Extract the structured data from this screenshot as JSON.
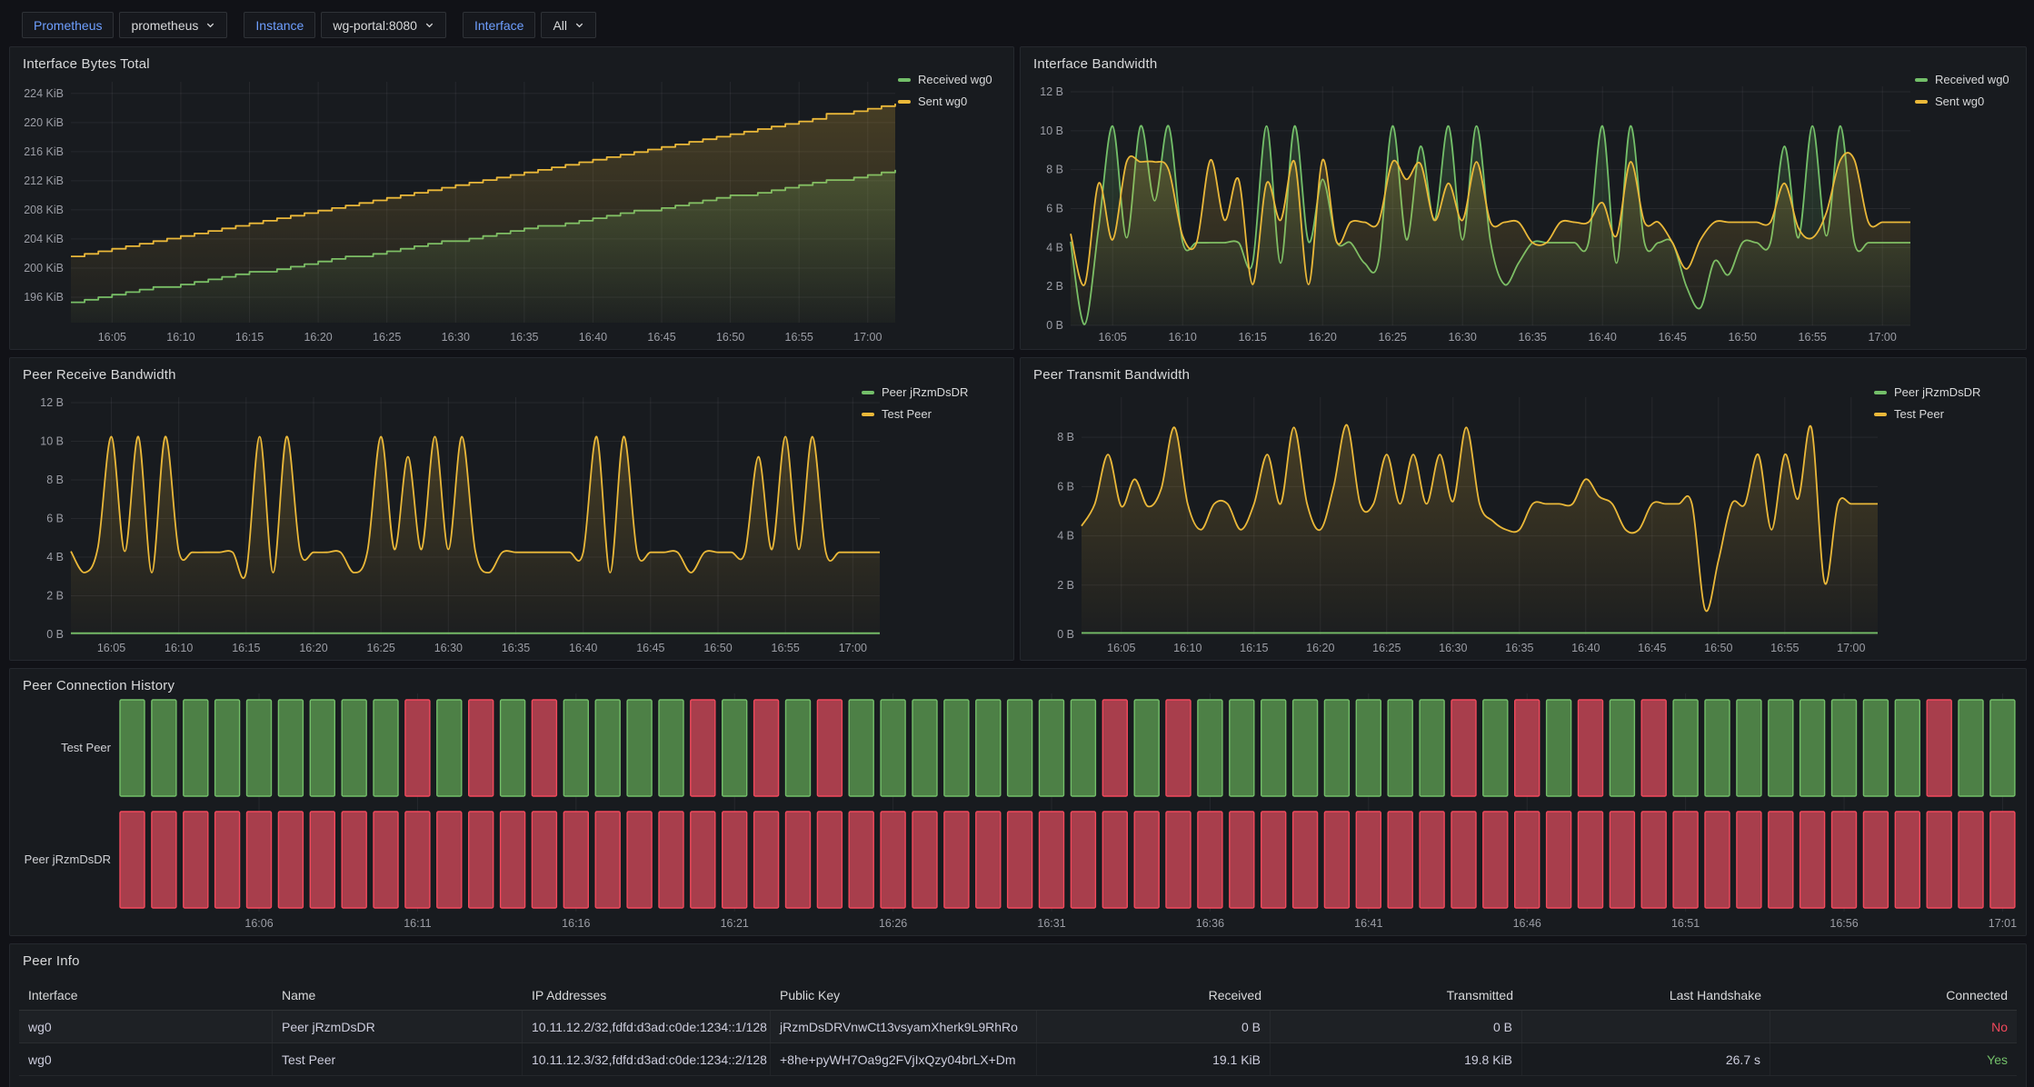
{
  "toolbar": {
    "variables": [
      {
        "label": "Prometheus",
        "value": "prometheus",
        "has_chevron": true
      },
      {
        "label": "Instance",
        "value": "wg-portal:8080",
        "has_chevron": true
      },
      {
        "label": "Interface",
        "value": "All",
        "has_chevron": true
      }
    ]
  },
  "colors": {
    "green": "#73BF69",
    "yellow": "#EAB839",
    "red": "#F2495C",
    "bar_green_fill": "#4d8046",
    "bar_red_fill": "#a83e4c",
    "link_blue": "#6e9fff",
    "text": "#d8d9da",
    "dim_text": "#9b9da5",
    "grid": "rgba(204,204,220,0.08)",
    "panel_bg": "#181b1f",
    "page_bg": "#111217"
  },
  "panels": {
    "bytes_total": {
      "title": "Interface Bytes Total",
      "legend": [
        {
          "label": "Received wg0",
          "color": "#73BF69"
        },
        {
          "label": "Sent wg0",
          "color": "#EAB839"
        }
      ]
    },
    "if_bandwidth": {
      "title": "Interface Bandwidth",
      "legend": [
        {
          "label": "Received wg0",
          "color": "#73BF69"
        },
        {
          "label": "Sent wg0",
          "color": "#EAB839"
        }
      ]
    },
    "peer_rx": {
      "title": "Peer Receive Bandwidth",
      "legend": [
        {
          "label": "Peer jRzmDsDR",
          "color": "#73BF69"
        },
        {
          "label": "Test Peer",
          "color": "#EAB839"
        }
      ]
    },
    "peer_tx": {
      "title": "Peer Transmit Bandwidth",
      "legend": [
        {
          "label": "Peer jRzmDsDR",
          "color": "#73BF69"
        },
        {
          "label": "Test Peer",
          "color": "#EAB839"
        }
      ]
    },
    "conn_history": {
      "title": "Peer Connection History"
    },
    "peer_info": {
      "title": "Peer Info"
    }
  },
  "time_axis": {
    "start": "16:02",
    "line_tick_labels": [
      "16:05",
      "16:10",
      "16:15",
      "16:20",
      "16:25",
      "16:30",
      "16:35",
      "16:40",
      "16:45",
      "16:50",
      "16:55",
      "17:00"
    ],
    "line_tick_offsets_min": [
      3,
      8,
      13,
      18,
      23,
      28,
      33,
      38,
      43,
      48,
      53,
      58
    ]
  },
  "chart_data": [
    {
      "id": "bytes",
      "type": "line",
      "title": "Interface Bytes Total",
      "ylabel": "",
      "xlabel": "",
      "unit": "KiB",
      "ylim": [
        192.5,
        225.6
      ],
      "yticks": [
        {
          "v": 224,
          "label": "224 KiB"
        },
        {
          "v": 220,
          "label": "220 KiB"
        },
        {
          "v": 216,
          "label": "216 KiB"
        },
        {
          "v": 212,
          "label": "212 KiB"
        },
        {
          "v": 208,
          "label": "208 KiB"
        },
        {
          "v": 204,
          "label": "204 KiB"
        },
        {
          "v": 200,
          "label": "200 KiB"
        },
        {
          "v": 196,
          "label": "196 KiB"
        }
      ],
      "x_step_min": 5,
      "stepped": true,
      "legend_position": "right",
      "series": [
        {
          "name": "Received wg0",
          "color": "#73BF69",
          "values": [
            195.6,
            197.1,
            198.6,
            200.1,
            201.6,
            203.1,
            204.6,
            206.1,
            207.6,
            209.1,
            210.6,
            212.1,
            213.6
          ]
        },
        {
          "name": "Sent wg0",
          "color": "#EAB839",
          "values": [
            201.8,
            203.6,
            205.3,
            207.1,
            208.8,
            210.6,
            212.4,
            214.1,
            215.9,
            217.6,
            219.4,
            221.2,
            222.9
          ]
        }
      ]
    },
    {
      "id": "if_bw",
      "type": "line",
      "title": "Interface Bandwidth",
      "unit": "B",
      "ylim": [
        0,
        12.28
      ],
      "yticks": [
        {
          "v": 12,
          "label": "12 B"
        },
        {
          "v": 10,
          "label": "10 B"
        },
        {
          "v": 8,
          "label": "8 B"
        },
        {
          "v": 6,
          "label": "6 B"
        },
        {
          "v": 4,
          "label": "4 B"
        },
        {
          "v": 2,
          "label": "2 B"
        },
        {
          "v": 0,
          "label": "0 B"
        }
      ],
      "x_step_min": 1,
      "legend_position": "right",
      "series": [
        {
          "name": "Received wg0",
          "color": "#73BF69",
          "values": [
            4.3,
            0.05,
            5.0,
            10.24,
            4.5,
            10.24,
            6.4,
            10.24,
            4.3,
            4.25,
            4.25,
            4.25,
            4.25,
            3.2,
            10.24,
            3.2,
            10.24,
            4.3,
            7.5,
            4.3,
            4.25,
            3.2,
            3.3,
            10.24,
            4.4,
            9.2,
            5.4,
            10.24,
            4.4,
            10.24,
            4.3,
            2.1,
            3.2,
            4.25,
            4.25,
            4.25,
            4.25,
            4.25,
            10.24,
            3.2,
            10.24,
            4.25,
            4.25,
            4.25,
            2.0,
            0.9,
            3.3,
            2.6,
            4.25,
            4.25,
            4.25,
            9.2,
            4.5,
            10.24,
            4.6,
            10.24,
            4.25,
            4.25,
            4.25,
            4.25
          ]
        },
        {
          "name": "Sent wg0",
          "color": "#EAB839",
          "values": [
            4.7,
            2.1,
            7.3,
            4.4,
            8.4,
            8.4,
            8.4,
            8.0,
            4.6,
            4.25,
            8.5,
            5.4,
            7.5,
            2.1,
            7.3,
            5.4,
            8.4,
            2.1,
            8.5,
            4.3,
            5.3,
            5.3,
            5.3,
            8.4,
            7.5,
            8.3,
            5.4,
            7.3,
            5.4,
            8.4,
            5.3,
            5.3,
            5.3,
            4.25,
            4.25,
            5.3,
            5.3,
            5.3,
            6.3,
            4.6,
            8.4,
            5.3,
            5.3,
            4.25,
            2.9,
            4.4,
            5.3,
            5.3,
            5.3,
            5.3,
            5.3,
            7.3,
            5.0,
            4.5,
            5.8,
            8.5,
            8.5,
            5.3,
            5.3,
            5.3
          ]
        }
      ]
    },
    {
      "id": "peer_rx",
      "type": "line",
      "title": "Peer Receive Bandwidth",
      "unit": "B",
      "ylim": [
        0,
        12.28
      ],
      "yticks": [
        {
          "v": 12,
          "label": "12 B"
        },
        {
          "v": 10,
          "label": "10 B"
        },
        {
          "v": 8,
          "label": "8 B"
        },
        {
          "v": 6,
          "label": "6 B"
        },
        {
          "v": 4,
          "label": "4 B"
        },
        {
          "v": 2,
          "label": "2 B"
        },
        {
          "v": 0,
          "label": "0 B"
        }
      ],
      "x_step_min": 1,
      "legend_position": "right",
      "series": [
        {
          "name": "Peer jRzmDsDR",
          "color": "#73BF69",
          "flat": 0.06
        },
        {
          "name": "Test Peer",
          "color": "#EAB839",
          "values": [
            4.3,
            3.2,
            4.5,
            10.24,
            4.3,
            10.24,
            3.2,
            10.24,
            4.3,
            4.25,
            4.25,
            4.25,
            4.25,
            3.2,
            10.24,
            3.2,
            10.24,
            4.3,
            4.25,
            4.25,
            4.25,
            3.2,
            4.3,
            10.24,
            4.4,
            9.2,
            4.4,
            10.24,
            4.4,
            10.24,
            4.3,
            3.2,
            4.25,
            4.25,
            4.25,
            4.25,
            4.25,
            4.25,
            4.25,
            10.24,
            3.2,
            10.24,
            4.25,
            4.25,
            4.25,
            4.25,
            3.2,
            4.25,
            4.25,
            4.25,
            4.25,
            9.2,
            4.4,
            10.24,
            4.4,
            10.24,
            4.25,
            4.25,
            4.25,
            4.25
          ]
        }
      ]
    },
    {
      "id": "peer_tx",
      "type": "line",
      "title": "Peer Transmit Bandwidth",
      "unit": "B",
      "ylim": [
        0,
        9.63
      ],
      "yticks": [
        {
          "v": 8,
          "label": "8 B"
        },
        {
          "v": 6,
          "label": "6 B"
        },
        {
          "v": 4,
          "label": "4 B"
        },
        {
          "v": 2,
          "label": "2 B"
        },
        {
          "v": 0,
          "label": "0 B"
        }
      ],
      "x_step_min": 1,
      "legend_position": "right",
      "series": [
        {
          "name": "Peer jRzmDsDR",
          "color": "#73BF69",
          "flat": 0.06
        },
        {
          "name": "Test Peer",
          "color": "#EAB839",
          "values": [
            4.4,
            5.3,
            7.3,
            5.2,
            6.3,
            5.2,
            5.9,
            8.4,
            5.3,
            4.25,
            5.3,
            5.3,
            4.25,
            5.3,
            7.3,
            5.3,
            8.4,
            5.3,
            4.25,
            6.0,
            8.5,
            5.3,
            5.3,
            7.3,
            5.3,
            7.3,
            5.3,
            7.3,
            5.4,
            8.4,
            5.3,
            4.6,
            4.25,
            4.25,
            5.3,
            5.3,
            5.3,
            5.3,
            6.3,
            5.6,
            5.3,
            4.25,
            4.25,
            5.3,
            5.3,
            5.3,
            5.3,
            1.0,
            3.0,
            5.3,
            5.3,
            7.3,
            4.25,
            7.3,
            5.5,
            8.4,
            2.1,
            5.3,
            5.3,
            5.3
          ]
        }
      ]
    },
    {
      "id": "conn_history",
      "type": "status-history",
      "title": "Peer Connection History",
      "up_color": "#73BF69",
      "down_color": "#F2495C",
      "minutes_per_bar": 1,
      "first_bar": "16:02",
      "xticks": [
        "16:06",
        "16:11",
        "16:16",
        "16:21",
        "16:26",
        "16:31",
        "16:36",
        "16:41",
        "16:46",
        "16:51",
        "16:56",
        "17:01"
      ],
      "xtick_bar_indices": [
        4,
        9,
        14,
        19,
        24,
        29,
        34,
        39,
        44,
        49,
        54,
        59
      ],
      "rows": [
        {
          "name": "Test Peer",
          "statuses": "111111111010101111010101111111101011111111010101011111111011"
        },
        {
          "name": "Peer jRzmDsDR",
          "statuses": "000000000000000000000000000000000000000000000000000000000000"
        }
      ]
    }
  ],
  "table": {
    "title": "Peer Info",
    "headers": [
      "Interface",
      "Name",
      "IP Addresses",
      "Public Key",
      "Received",
      "Transmitted",
      "Last Handshake",
      "Connected"
    ],
    "aligns": [
      "l",
      "l",
      "l",
      "l",
      "r",
      "r",
      "r",
      "r"
    ],
    "rows": [
      {
        "cells": [
          "wg0",
          "Peer jRzmDsDR",
          "10.11.12.2/32,fdfd:d3ad:c0de:1234::1/128",
          "jRzmDsDRVnwCt13vsyamXherk9L9RhRo",
          "0 B",
          "0 B",
          "",
          "No"
        ],
        "connected": "No"
      },
      {
        "cells": [
          "wg0",
          "Test Peer",
          "10.11.12.3/32,fdfd:d3ad:c0de:1234::2/128",
          "+8he+pyWH7Oa9g2FVjIxQzy04brLX+Dm",
          "19.1 KiB",
          "19.8 KiB",
          "26.7 s",
          "Yes"
        ],
        "connected": "Yes"
      }
    ]
  }
}
